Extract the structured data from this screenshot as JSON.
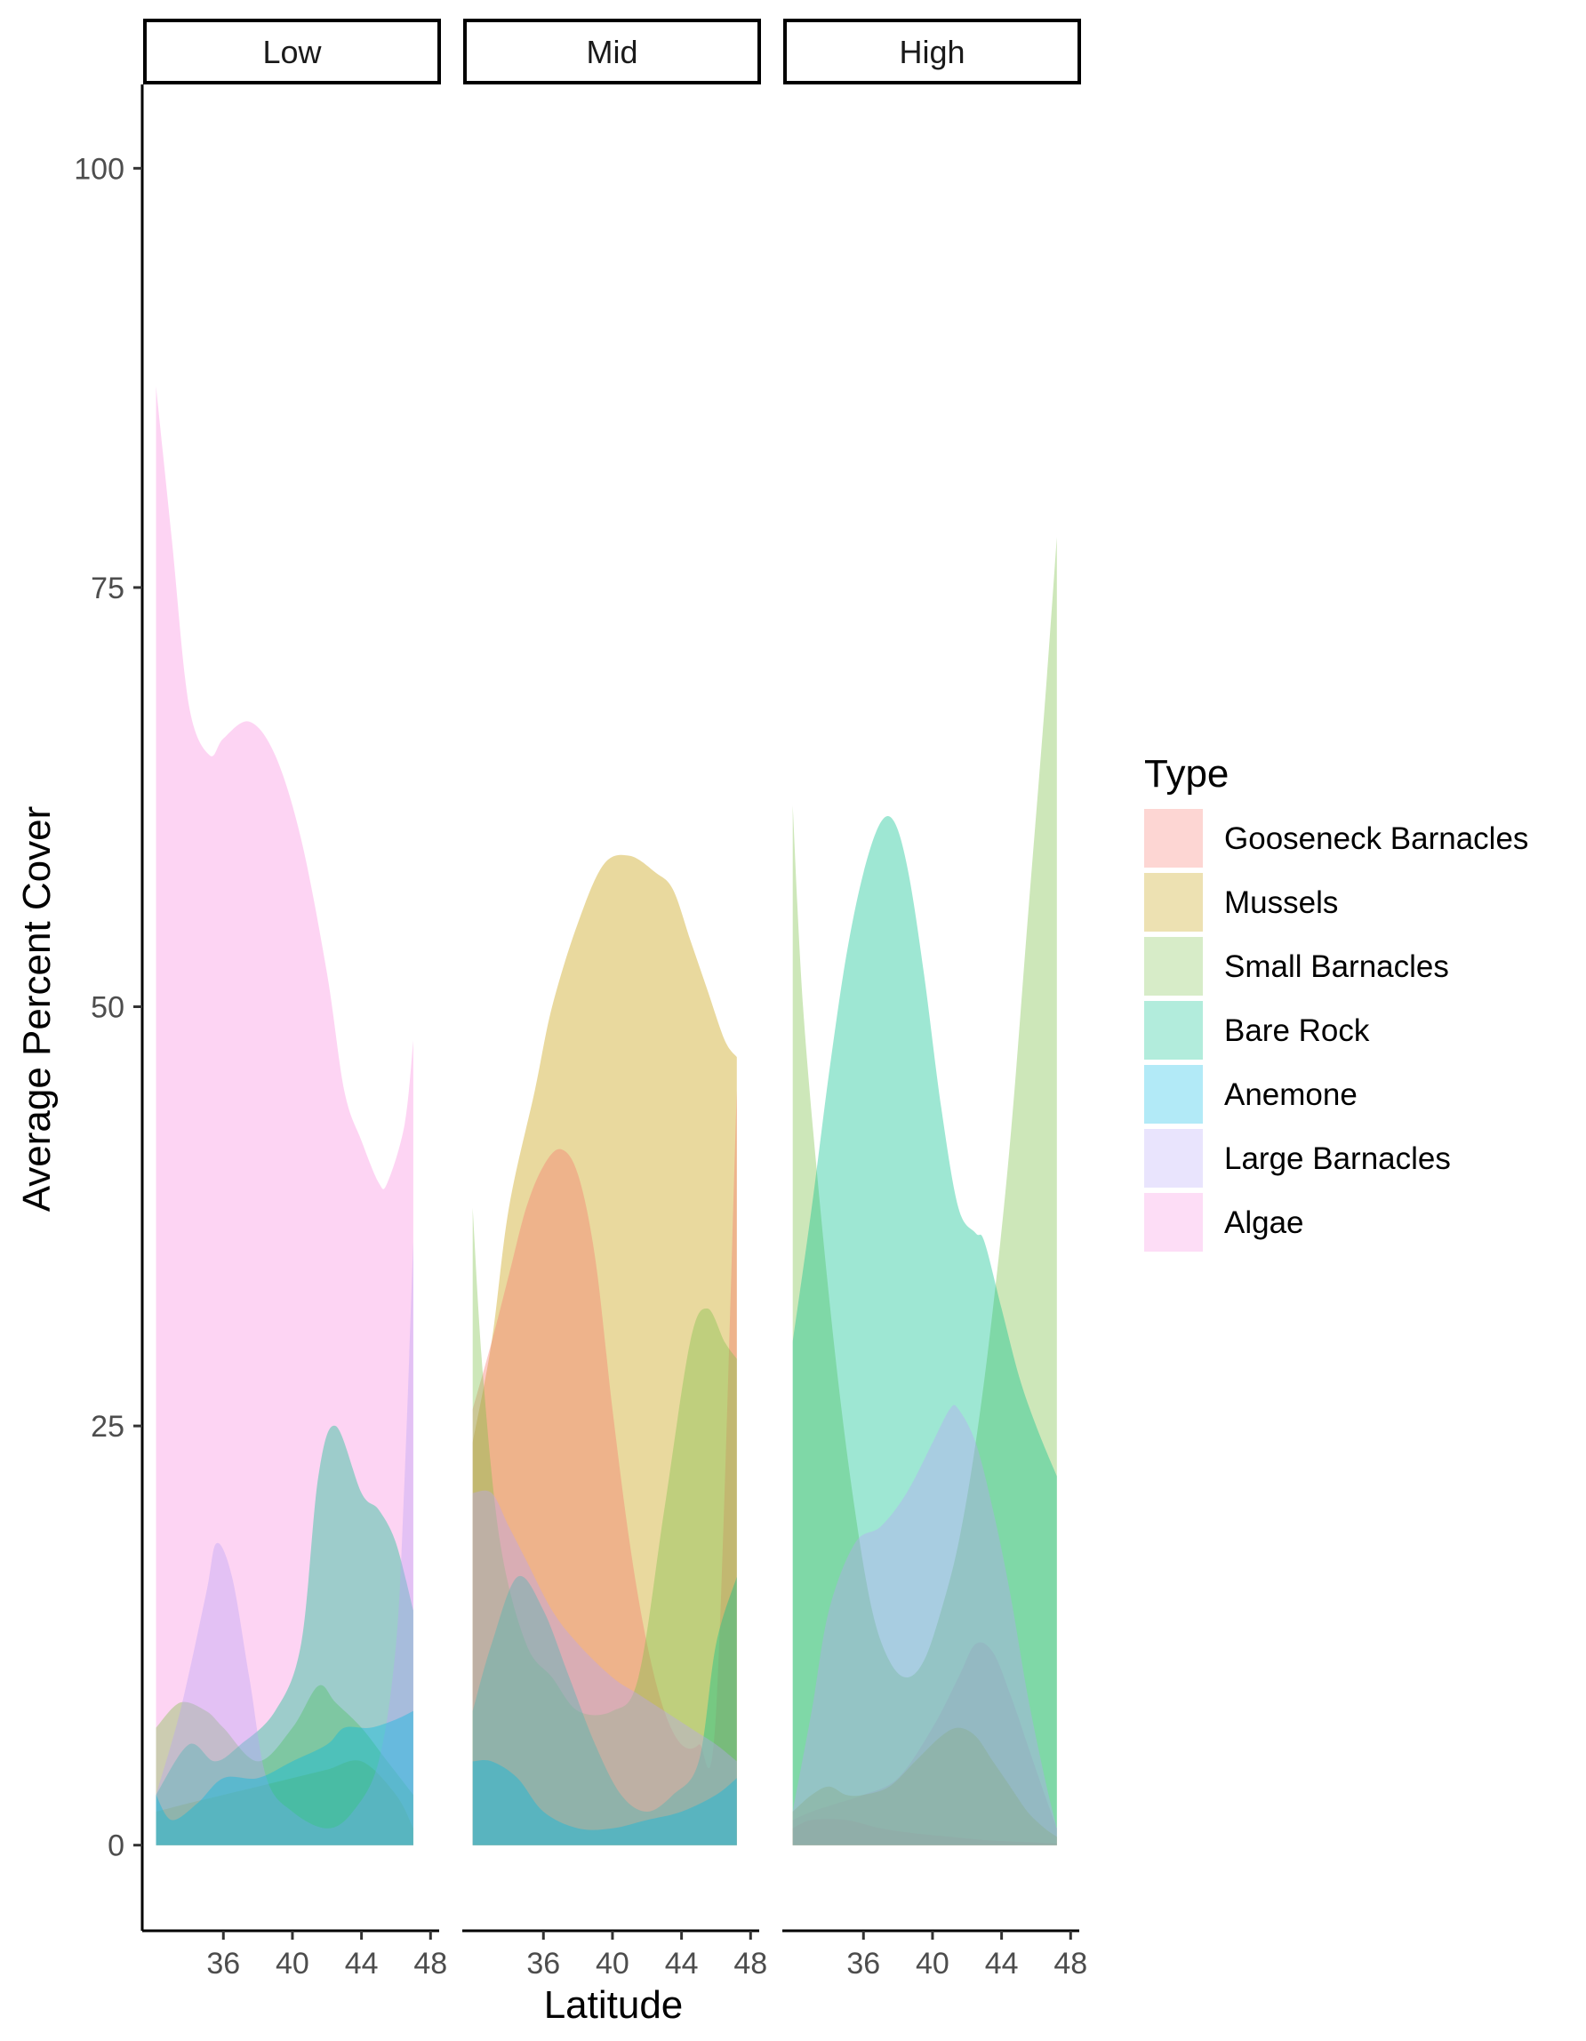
{
  "chart_data": {
    "type": "area",
    "xlabel": "Latitude",
    "ylabel": "Average Percent Cover",
    "ylim": [
      -5,
      105
    ],
    "xlim": [
      31.3,
      48.5
    ],
    "x_ticks": [
      "36",
      "40",
      "44",
      "48"
    ],
    "y_ticks": [
      "0",
      "25",
      "50",
      "75",
      "100"
    ],
    "grid": false,
    "legend": {
      "title": "Type",
      "position": "right",
      "items": [
        "Gooseneck Barnacles",
        "Mussels",
        "Small Barnacles",
        "Bare Rock",
        "Anemone",
        "Large Barnacles",
        "Algae"
      ]
    },
    "colors": {
      "Gooseneck Barnacles": "#F8766D",
      "Mussels": "#C49A00",
      "Small Barnacles": "#7CC048",
      "Bare Rock": "#00C08B",
      "Anemone": "#00B9E3",
      "Large Barnacles": "#B7A4F7",
      "Algae": "#F98FE0"
    },
    "facets": [
      {
        "name": "Low",
        "series": [
          {
            "name": "Algae",
            "x": [
              32.1,
              33.0,
              34.0,
              35.2,
              36.0,
              37.5,
              39.0,
              40.5,
              42.0,
              43.0,
              44.0,
              45.0,
              45.5,
              46.5,
              47.0
            ],
            "y": [
              87,
              78,
              68,
              65,
              66,
              67,
              65,
              60,
              52,
              45,
              42,
              39.5,
              39.5,
              43,
              48
            ]
          },
          {
            "name": "Large Barnacles",
            "x": [
              32.1,
              33.5,
              35.0,
              35.6,
              36.5,
              37.5,
              38.5,
              40.0,
              42.0,
              43.5,
              45.0,
              46.0,
              46.5,
              47.0
            ],
            "y": [
              3,
              8,
              15,
              18,
              16,
              10,
              4,
              2,
              1,
              2,
              5,
              12,
              22,
              36
            ]
          },
          {
            "name": "Bare Rock",
            "x": [
              32.1,
              34.0,
              35.5,
              37.0,
              39.0,
              40.5,
              41.5,
              42.5,
              44.0,
              45.0,
              46.0,
              47.0
            ],
            "y": [
              3,
              6,
              5,
              6,
              8,
              12,
              22,
              25,
              21,
              20,
              18,
              14
            ]
          },
          {
            "name": "Small Barnacles",
            "x": [
              32.1,
              33.5,
              35.0,
              36.0,
              38.0,
              40.0,
              41.5,
              42.5,
              44.0,
              45.5,
              47.0
            ],
            "y": [
              7,
              8.5,
              8,
              7,
              5,
              7,
              9.5,
              8.5,
              7,
              5,
              3
            ]
          },
          {
            "name": "Anemone",
            "x": [
              32.1,
              33.0,
              34.5,
              36.0,
              38.0,
              40.0,
              42.0,
              43.0,
              44.5,
              46.0,
              47.0
            ],
            "y": [
              3,
              1.5,
              2.5,
              4,
              4,
              5,
              6,
              7,
              7,
              7.5,
              8
            ]
          },
          {
            "name": "Mussels",
            "x": [
              32.1,
              34.0,
              36.0,
              38.0,
              40.0,
              42.0,
              44.0,
              46.0,
              47.0
            ],
            "y": [
              2,
              2.5,
              3,
              3.5,
              4,
              4.5,
              5,
              3,
              1
            ]
          }
        ]
      },
      {
        "name": "Mid",
        "series": [
          {
            "name": "Mussels",
            "x": [
              31.9,
              33.0,
              34.0,
              35.5,
              36.5,
              38.0,
              39.5,
              41.0,
              42.5,
              43.5,
              44.5,
              45.5,
              46.5,
              47.2
            ],
            "y": [
              24,
              30,
              38,
              45,
              50,
              55,
              58.5,
              59,
              58,
              57,
              54,
              51,
              48,
              47
            ]
          },
          {
            "name": "Gooseneck Barnacles",
            "x": [
              31.9,
              33.0,
              34.0,
              35.0,
              36.0,
              37.0,
              38.0,
              39.0,
              40.0,
              41.0,
              42.0,
              43.0,
              44.0,
              45.0,
              46.0,
              47.2
            ],
            "y": [
              26,
              30,
              34,
              38,
              40.5,
              41.5,
              40,
              35,
              26,
              18,
              12,
              8,
              6,
              6,
              8,
              45
            ]
          },
          {
            "name": "Small Barnacles",
            "x": [
              31.9,
              32.5,
              33.5,
              35.0,
              36.5,
              38.0,
              40.0,
              41.5,
              43.0,
              44.5,
              45.5,
              46.5,
              47.2
            ],
            "y": [
              38,
              28,
              18,
              12,
              10,
              8,
              8,
              10,
              20,
              30,
              32,
              30,
              29
            ]
          },
          {
            "name": "Large Barnacles",
            "x": [
              31.9,
              33.0,
              34.0,
              35.0,
              36.5,
              38.0,
              40.0,
              41.5,
              43.0,
              44.5,
              46.0,
              47.2
            ],
            "y": [
              21,
              21,
              19,
              17,
              14,
              12,
              10,
              9,
              8,
              7,
              6,
              5
            ]
          },
          {
            "name": "Bare Rock",
            "x": [
              31.9,
              33.0,
              34.5,
              36.0,
              37.5,
              39.0,
              40.5,
              42.0,
              43.5,
              45.0,
              46.0,
              47.2
            ],
            "y": [
              8,
              12,
              16,
              14,
              10,
              6,
              3,
              2,
              3,
              5,
              12,
              16
            ]
          },
          {
            "name": "Anemone",
            "x": [
              31.9,
              33.0,
              34.5,
              36.0,
              38.0,
              40.0,
              42.0,
              44.0,
              46.0,
              47.2
            ],
            "y": [
              5,
              5,
              4,
              2,
              1,
              1,
              1.5,
              2,
              3,
              4
            ]
          }
        ]
      },
      {
        "name": "High",
        "series": [
          {
            "name": "Small Barnacles",
            "x": [
              31.9,
              32.5,
              33.5,
              34.5,
              35.5,
              36.5,
              37.5,
              38.5,
              39.5,
              40.5,
              41.5,
              42.5,
              43.5,
              44.5,
              45.5,
              46.5,
              47.2
            ],
            "y": [
              62,
              50,
              38,
              28,
              20,
              14,
              11,
              10,
              11,
              14,
              18,
              24,
              32,
              42,
              55,
              68,
              78
            ]
          },
          {
            "name": "Bare Rock",
            "x": [
              31.9,
              33.0,
              34.0,
              35.0,
              36.0,
              37.0,
              37.8,
              38.6,
              39.5,
              40.5,
              41.5,
              42.5,
              43.0,
              44.0,
              45.0,
              46.0,
              47.2
            ],
            "y": [
              30,
              38,
              46,
              53,
              58,
              61,
              61,
              58,
              52,
              44,
              38,
              36.5,
              36,
              32,
              28,
              25,
              22
            ]
          },
          {
            "name": "Large Barnacles",
            "x": [
              31.9,
              33.0,
              34.0,
              35.5,
              37.0,
              38.5,
              40.0,
              41.0,
              41.5,
              42.5,
              43.5,
              44.5,
              45.5,
              46.5,
              47.2
            ],
            "y": [
              2,
              8,
              14,
              18,
              19,
              21,
              24,
              26,
              26,
              24,
              20,
              15,
              9,
              4,
              1
            ]
          },
          {
            "name": "Algae",
            "x": [
              31.9,
              33.0,
              34.5,
              36.0,
              38.0,
              40.0,
              41.5,
              42.5,
              43.5,
              44.5,
              45.5,
              46.5,
              47.2
            ],
            "y": [
              1.5,
              2,
              2.5,
              3,
              4,
              7,
              10,
              12,
              11.5,
              9,
              6,
              3,
              1
            ]
          },
          {
            "name": "Mussels",
            "x": [
              31.9,
              33.0,
              34.0,
              35.0,
              36.0,
              37.5,
              39.0,
              40.5,
              41.5,
              42.5,
              43.5,
              44.5,
              45.5,
              46.5,
              47.2
            ],
            "y": [
              2,
              3,
              3.5,
              3,
              3,
              3.5,
              5,
              6.5,
              7,
              6.5,
              5,
              3.5,
              2,
              1,
              0.5
            ]
          },
          {
            "name": "Gooseneck Barnacles",
            "x": [
              31.9,
              33.0,
              35.0,
              37.0,
              39.0,
              41.0,
              43.0,
              45.0,
              47.2
            ],
            "y": [
              1,
              1.5,
              1.5,
              1,
              0.7,
              0.5,
              0.3,
              0.2,
              0.1
            ]
          }
        ]
      }
    ]
  }
}
